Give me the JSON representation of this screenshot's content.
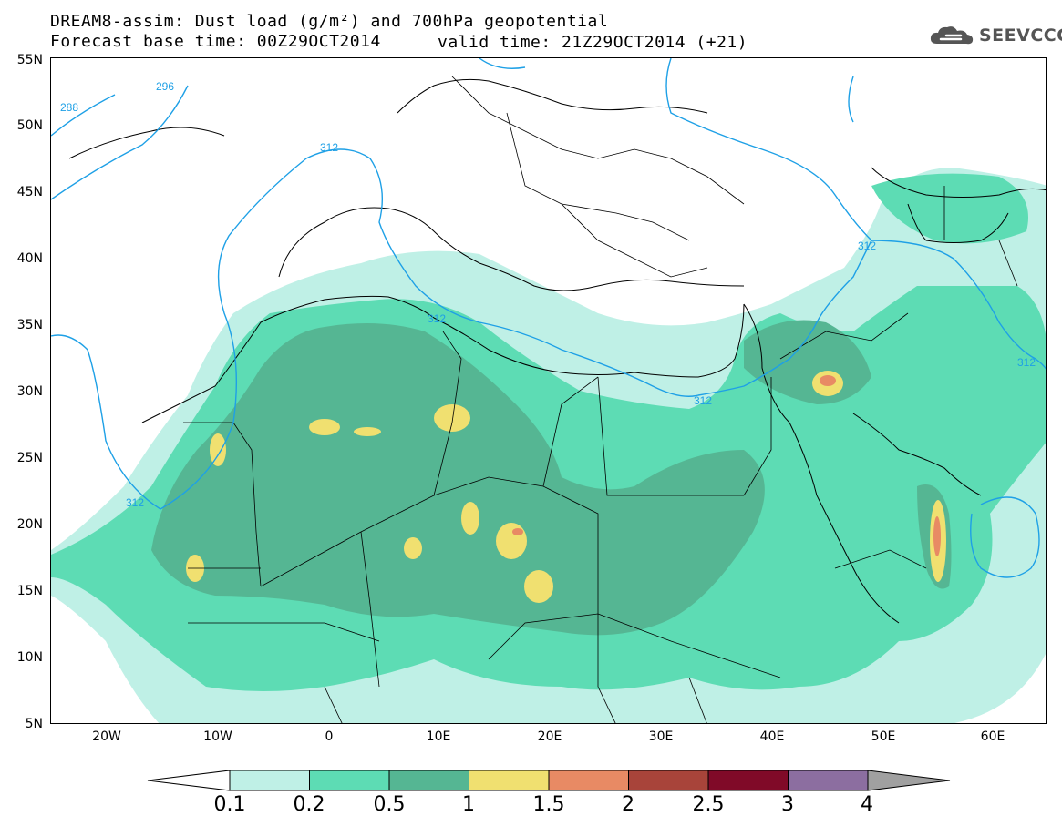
{
  "header": {
    "title_line1": "DREAM8-assim: Dust load (g/m²) and 700hPa geopotential",
    "title_line2_left": "Forecast base time: 00Z29OCT2014",
    "title_line2_right": "valid time: 21Z29OCT2014 (+21)",
    "logo_text": "SEEVCCC"
  },
  "axes": {
    "lat_labels": [
      "55N",
      "50N",
      "45N",
      "40N",
      "35N",
      "30N",
      "25N",
      "20N",
      "15N",
      "10N",
      "5N"
    ],
    "lon_labels": [
      "20W",
      "10W",
      "0",
      "10E",
      "20E",
      "30E",
      "40E",
      "50E",
      "60E"
    ]
  },
  "contours": {
    "geopotential_labels": [
      "288",
      "296",
      "312",
      "312",
      "312",
      "312",
      "312",
      "312"
    ]
  },
  "colorbar": {
    "levels": [
      "0.1",
      "0.2",
      "0.5",
      "1",
      "1.5",
      "2",
      "2.5",
      "3",
      "4"
    ],
    "colors": [
      "#bff0e6",
      "#5ddcb4",
      "#55b693",
      "#f0e070",
      "#e88a64",
      "#a8443a",
      "#800a28",
      "#8c6ea0"
    ],
    "low_color": "#ffffff",
    "high_color": "#a0a0a0"
  },
  "palette": {
    "contour_line": "#1ea0e6"
  }
}
